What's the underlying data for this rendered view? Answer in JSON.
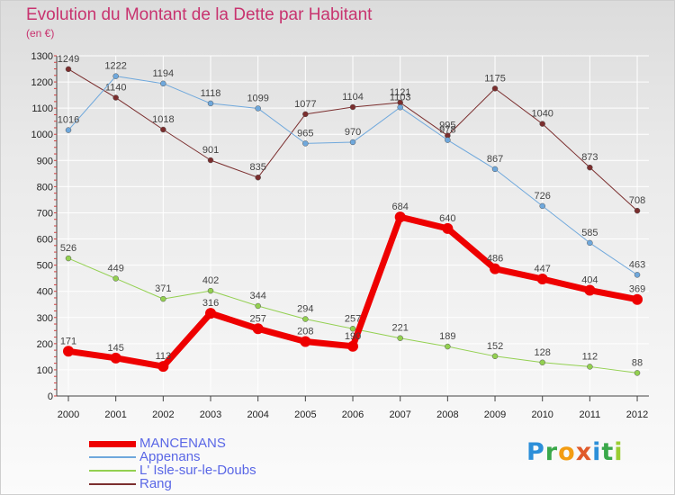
{
  "chart_data": {
    "type": "line",
    "title": "Evolution du Montant de la Dette par Habitant",
    "subtitle": "(en €)",
    "x": [
      "2000",
      "2001",
      "2002",
      "2003",
      "2004",
      "2005",
      "2006",
      "2007",
      "2008",
      "2009",
      "2010",
      "2011",
      "2012"
    ],
    "ylim": [
      0,
      1300
    ],
    "yticks": [
      0,
      100,
      200,
      300,
      400,
      500,
      600,
      700,
      800,
      900,
      1000,
      1100,
      1200,
      1300
    ],
    "grid": true,
    "legend_position": "bottom-left",
    "series": [
      {
        "name": "MANCENANS",
        "color": "#ee0000",
        "values": [
          171,
          145,
          113,
          316,
          257,
          208,
          190,
          684,
          640,
          486,
          447,
          404,
          369
        ]
      },
      {
        "name": "Appenans",
        "color": "#6fa8dc",
        "values": [
          1016,
          1222,
          1194,
          1118,
          1099,
          965,
          970,
          1103,
          978,
          867,
          726,
          585,
          463
        ]
      },
      {
        "name": "L' Isle-sur-le-Doubs",
        "color": "#93d050",
        "values": [
          526,
          449,
          371,
          402,
          344,
          294,
          257,
          221,
          189,
          152,
          128,
          112,
          88
        ]
      },
      {
        "name": "Rang",
        "color": "#7b2e2e",
        "values": [
          1249,
          1140,
          1018,
          901,
          835,
          1077,
          1104,
          1121,
          995,
          1175,
          1040,
          873,
          708
        ]
      }
    ]
  },
  "logo": {
    "text": "Proxiti",
    "letters": [
      "P",
      "r",
      "o",
      "x",
      "i",
      "t",
      "i"
    ]
  }
}
